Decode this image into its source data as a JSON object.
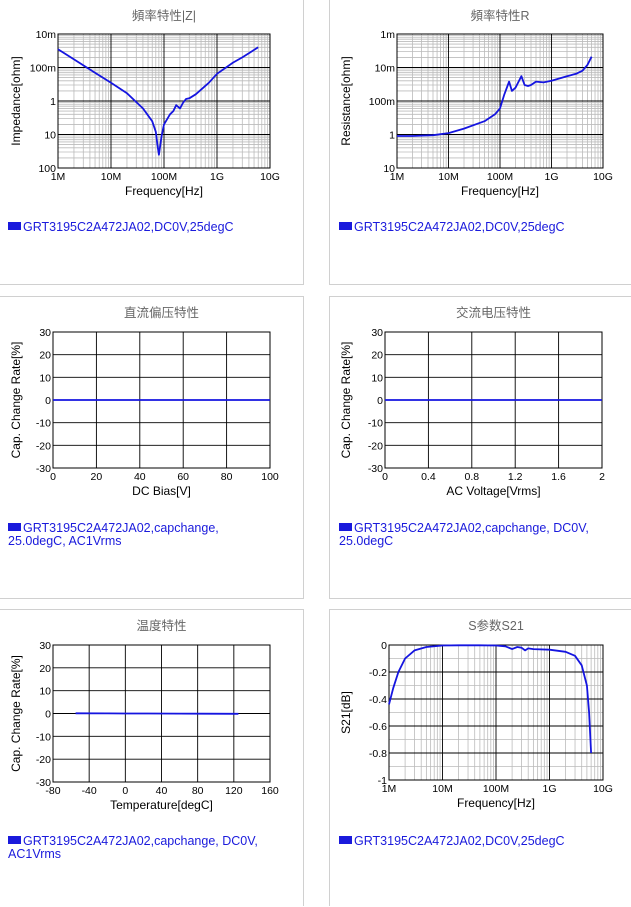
{
  "colors": {
    "series": "#1515e0",
    "grid_minor": "#bbbbbb",
    "grid_major": "#000000",
    "title": "#666666"
  },
  "chart_data": [
    {
      "type": "line",
      "title": "頻率特性|Z|",
      "xlabel": "Frequency[Hz]",
      "ylabel": "Impedance[ohm]",
      "x_scale": "log",
      "y_scale": "log",
      "xlim": [
        1000000,
        10000000000
      ],
      "ylim": [
        0.01,
        100
      ],
      "x_ticks": [
        "1M",
        "10M",
        "100M",
        "1G",
        "10G"
      ],
      "y_ticks": [
        "10m",
        "100m",
        "1",
        "10",
        "100"
      ],
      "grid": true,
      "series": [
        {
          "name": "GRT3195C2A472JA02,DC0V,25degC",
          "x": [
            1000000,
            2000000,
            5000000,
            10000000,
            20000000,
            40000000,
            60000000,
            70000000,
            75000000,
            80000000,
            90000000,
            100000000,
            130000000,
            150000000,
            170000000,
            200000000,
            230000000,
            260000000,
            300000000,
            400000000,
            700000000,
            1000000000,
            2000000000,
            3000000000,
            4500000000,
            6000000000
          ],
          "y": [
            35,
            17.5,
            7,
            3.5,
            1.7,
            0.6,
            0.25,
            0.12,
            0.05,
            0.025,
            0.09,
            0.2,
            0.4,
            0.5,
            0.75,
            0.6,
            0.9,
            1.15,
            1.2,
            1.6,
            3.5,
            6.5,
            14,
            20,
            30,
            40
          ]
        }
      ]
    },
    {
      "type": "line",
      "title": "頻率特性R",
      "xlabel": "Frequency[Hz]",
      "ylabel": "Resistance[ohm]",
      "x_scale": "log",
      "y_scale": "log",
      "xlim": [
        1000000,
        10000000000
      ],
      "ylim": [
        0.001,
        10
      ],
      "x_ticks": [
        "1M",
        "10M",
        "100M",
        "1G",
        "10G"
      ],
      "y_ticks": [
        "1m",
        "10m",
        "100m",
        "1",
        "10"
      ],
      "grid": true,
      "series": [
        {
          "name": "GRT3195C2A472JA02,DC0V,25degC",
          "x": [
            1000000,
            2000000,
            5000000,
            10000000,
            20000000,
            50000000,
            80000000,
            100000000,
            120000000,
            150000000,
            170000000,
            200000000,
            230000000,
            260000000,
            300000000,
            350000000,
            400000000,
            500000000,
            700000000,
            1000000000,
            2000000000,
            3000000000,
            4000000000,
            5000000000,
            6000000000
          ],
          "y": [
            0.009,
            0.009,
            0.0095,
            0.011,
            0.015,
            0.025,
            0.04,
            0.06,
            0.15,
            0.38,
            0.2,
            0.25,
            0.38,
            0.55,
            0.3,
            0.28,
            0.3,
            0.38,
            0.36,
            0.4,
            0.55,
            0.65,
            0.8,
            1.2,
            2.1
          ]
        }
      ]
    },
    {
      "type": "line",
      "title": "直流偏压特性",
      "xlabel": "DC Bias[V]",
      "ylabel": "Cap. Change Rate[%]",
      "xlim": [
        0,
        100
      ],
      "ylim": [
        -30,
        30
      ],
      "x_ticks": [
        "0",
        "20",
        "40",
        "60",
        "80",
        "100"
      ],
      "y_ticks": [
        "30",
        "20",
        "10",
        "0",
        "-10",
        "-20",
        "-30"
      ],
      "grid": true,
      "series": [
        {
          "name": "GRT3195C2A472JA02,capchange, 25.0degC, AC1Vrms",
          "x": [
            0,
            100
          ],
          "y": [
            0,
            0
          ]
        }
      ]
    },
    {
      "type": "line",
      "title": "交流电压特性",
      "xlabel": "AC Voltage[Vrms]",
      "ylabel": "Cap. Change Rate[%]",
      "xlim": [
        0,
        2
      ],
      "ylim": [
        -30,
        30
      ],
      "x_ticks": [
        "0",
        "0.4",
        "0.8",
        "1.2",
        "1.6",
        "2"
      ],
      "y_ticks": [
        "30",
        "20",
        "10",
        "0",
        "-10",
        "-20",
        "-30"
      ],
      "grid": true,
      "series": [
        {
          "name": "GRT3195C2A472JA02,capchange, DC0V, 25.0degC",
          "x": [
            0,
            2
          ],
          "y": [
            0,
            0
          ]
        }
      ]
    },
    {
      "type": "line",
      "title": "温度特性",
      "xlabel": "Temperature[degC]",
      "ylabel": "Cap. Change Rate[%]",
      "xlim": [
        -80,
        160
      ],
      "ylim": [
        -30,
        30
      ],
      "x_ticks": [
        "-80",
        "-40",
        "0",
        "40",
        "80",
        "120",
        "160"
      ],
      "y_ticks": [
        "30",
        "20",
        "10",
        "0",
        "-10",
        "-20",
        "-30"
      ],
      "grid": true,
      "series": [
        {
          "name": "GRT3195C2A472JA02,capchange, DC0V, AC1Vrms",
          "x": [
            -55,
            -20,
            0,
            25,
            60,
            85,
            125
          ],
          "y": [
            0.1,
            0.05,
            0.02,
            0,
            -0.05,
            -0.1,
            -0.15
          ]
        }
      ]
    },
    {
      "type": "line",
      "title": "S参数S21",
      "xlabel": "Frequency[Hz]",
      "ylabel": "S21[dB]",
      "x_scale": "log",
      "xlim": [
        1000000,
        10000000000
      ],
      "ylim": [
        -1,
        0
      ],
      "x_ticks": [
        "1M",
        "10M",
        "100M",
        "1G",
        "10G"
      ],
      "y_ticks": [
        "0",
        "-0.2",
        "-0.4",
        "-0.6",
        "-0.8",
        "-1"
      ],
      "grid": true,
      "series": [
        {
          "name": "GRT3195C2A472JA02,DC0V,25degC",
          "x": [
            1000000,
            1200000,
            1500000,
            2000000,
            3000000,
            5000000,
            10000000,
            20000000,
            50000000,
            100000000,
            150000000,
            200000000,
            250000000,
            300000000,
            350000000,
            400000000,
            500000000,
            1000000000,
            2000000000,
            3000000000,
            4000000000,
            5000000000,
            5500000000,
            6000000000
          ],
          "y": [
            -0.44,
            -0.32,
            -0.2,
            -0.1,
            -0.04,
            -0.015,
            -0.004,
            -0.002,
            -0.002,
            -0.004,
            -0.01,
            -0.03,
            -0.015,
            -0.02,
            -0.04,
            -0.025,
            -0.03,
            -0.035,
            -0.05,
            -0.08,
            -0.15,
            -0.3,
            -0.5,
            -0.8
          ]
        }
      ]
    }
  ]
}
